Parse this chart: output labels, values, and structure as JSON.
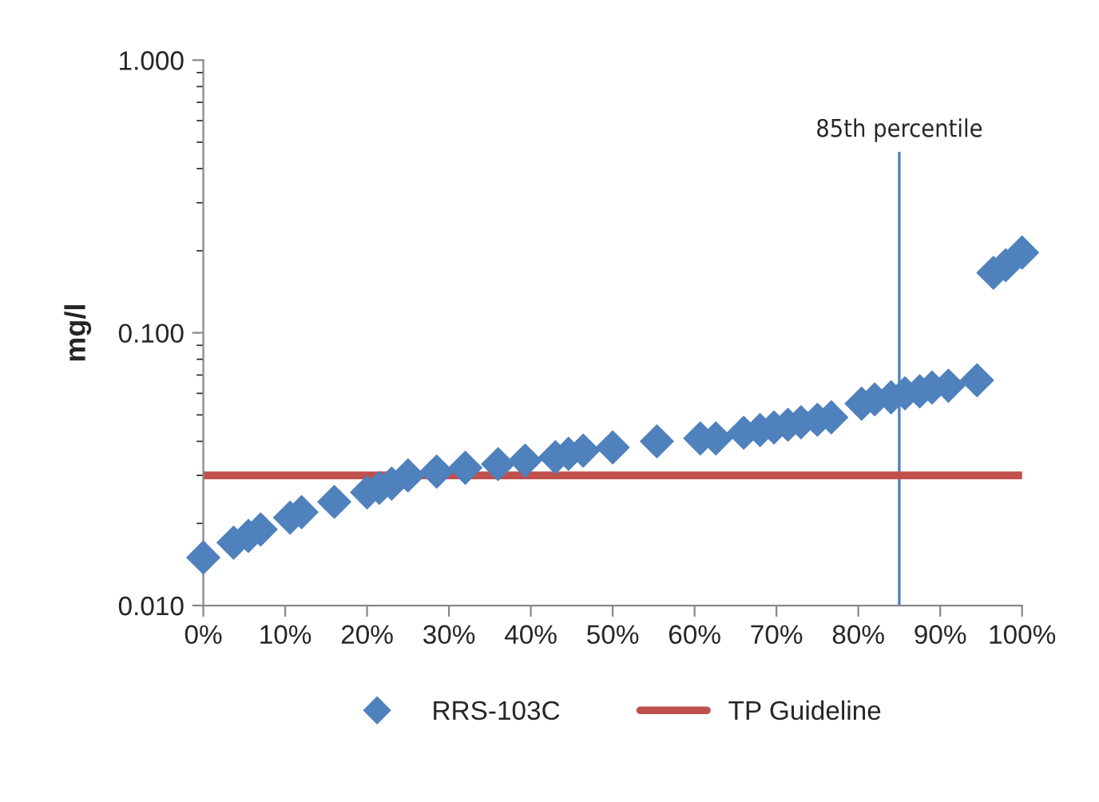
{
  "chart_data": {
    "type": "scatter",
    "ylabel": "mg/l",
    "log": "y",
    "grid": false,
    "legend": "bottom",
    "xlim": [
      0,
      100
    ],
    "xticks": [
      {
        "value": 0,
        "label": "0%"
      },
      {
        "value": 10,
        "label": "10%"
      },
      {
        "value": 20,
        "label": "20%"
      },
      {
        "value": 30,
        "label": "30%"
      },
      {
        "value": 40,
        "label": "40%"
      },
      {
        "value": 50,
        "label": "50%"
      },
      {
        "value": 60,
        "label": "60%"
      },
      {
        "value": 70,
        "label": "70%"
      },
      {
        "value": 80,
        "label": "80%"
      },
      {
        "value": 90,
        "label": "90%"
      },
      {
        "value": 100,
        "label": "100%"
      }
    ],
    "ylim": [
      0.01,
      1
    ],
    "yticks": [
      {
        "value": 0.01,
        "label": "0.010"
      },
      {
        "value": 0.1,
        "label": "0.100"
      },
      {
        "value": 1,
        "label": "1.000"
      }
    ],
    "series": [
      {
        "name": "RRS-103C",
        "marker": "diamond",
        "color": "#4f81bd",
        "x": [
          0,
          3.7,
          5.5,
          7,
          10.6,
          12,
          16,
          20,
          21.5,
          23,
          25,
          28.5,
          32,
          36,
          39.3,
          43,
          44.6,
          46.4,
          50,
          55.4,
          60.7,
          62.6,
          66,
          68,
          69.7,
          71.4,
          73,
          75,
          76.7,
          80.4,
          82,
          84,
          85.7,
          87.5,
          89,
          91,
          94.5,
          96.5,
          98,
          100
        ],
        "values": [
          0.015,
          0.017,
          0.018,
          0.019,
          0.021,
          0.022,
          0.024,
          0.026,
          0.027,
          0.028,
          0.03,
          0.031,
          0.032,
          0.033,
          0.034,
          0.035,
          0.036,
          0.037,
          0.038,
          0.04,
          0.041,
          0.041,
          0.043,
          0.044,
          0.045,
          0.046,
          0.047,
          0.048,
          0.049,
          0.055,
          0.057,
          0.058,
          0.06,
          0.061,
          0.063,
          0.064,
          0.067,
          0.166,
          0.177,
          0.197
        ]
      },
      {
        "name": "TP Guideline",
        "type": "line",
        "line_style": "solid",
        "color": "#c0504d",
        "x": [
          0,
          100
        ],
        "values": [
          0.03,
          0.03
        ]
      }
    ],
    "ref_lines": [
      {
        "axis": "x",
        "value": 85,
        "label": "85th percentile",
        "color": "#4f81bd",
        "line_style": "solid"
      }
    ]
  }
}
